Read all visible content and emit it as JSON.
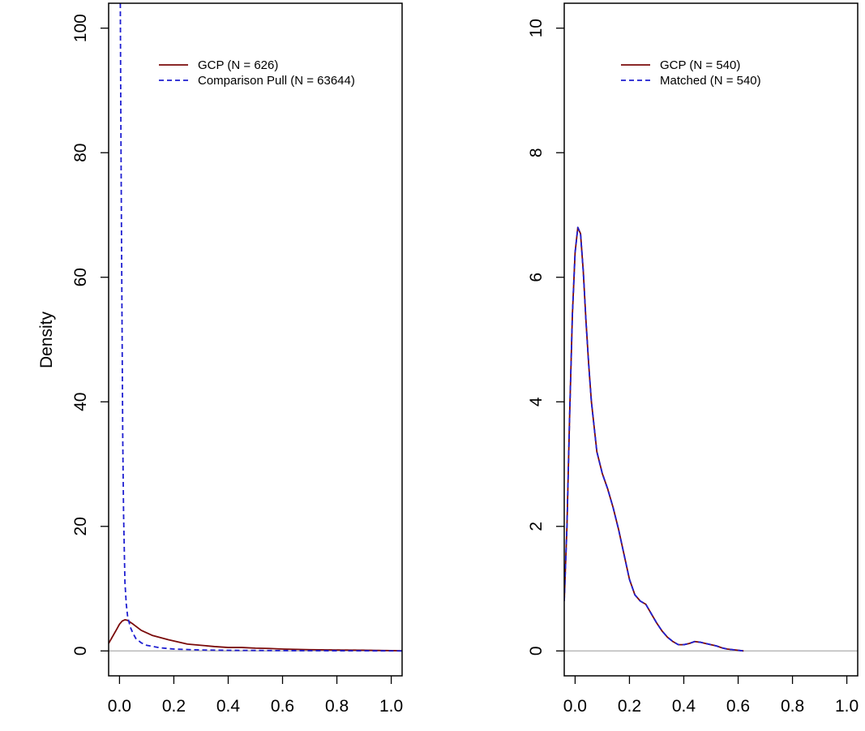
{
  "figure": {
    "ylabel": "Density",
    "colors": {
      "gcp": "#7a0a0a",
      "comparison": "#1f1fd1",
      "baseline": "#bdbdbd",
      "axis": "#000000"
    }
  },
  "chart_data": [
    {
      "type": "line",
      "xlabel": "",
      "ylabel": "Density",
      "xlim": [
        -0.04,
        1.04
      ],
      "ylim": [
        -4,
        104
      ],
      "xticks": [
        0.0,
        0.2,
        0.4,
        0.6,
        0.8,
        1.0
      ],
      "xtick_labels": [
        "0.0",
        "0.2",
        "0.4",
        "0.6",
        "0.8",
        "1.0"
      ],
      "yticks": [
        0,
        20,
        40,
        60,
        80,
        100
      ],
      "ytick_labels": [
        "0",
        "20",
        "40",
        "60",
        "80",
        "100"
      ],
      "grid": false,
      "legend": "top-right",
      "baseline_y": 0,
      "series": [
        {
          "name": "GCP (N = 626)",
          "style": "solid",
          "color": "#7a0a0a",
          "x": [
            -0.04,
            -0.01,
            0.0,
            0.01,
            0.02,
            0.03,
            0.05,
            0.08,
            0.12,
            0.18,
            0.25,
            0.3,
            0.35,
            0.4,
            0.45,
            0.5,
            0.55,
            0.6,
            0.65,
            0.7,
            0.8,
            0.9,
            1.0,
            1.04
          ],
          "y": [
            1.2,
            3.5,
            4.3,
            4.8,
            5.0,
            4.9,
            4.3,
            3.3,
            2.5,
            1.8,
            1.1,
            0.9,
            0.7,
            0.55,
            0.55,
            0.45,
            0.4,
            0.3,
            0.25,
            0.2,
            0.15,
            0.12,
            0.05,
            0.02
          ]
        },
        {
          "name": "Comparison Pull (N = 63644)",
          "style": "dashed",
          "color": "#1f1fd1",
          "x": [
            0.003,
            0.005,
            0.008,
            0.01,
            0.012,
            0.015,
            0.02,
            0.025,
            0.03,
            0.04,
            0.05,
            0.06,
            0.08,
            0.1,
            0.15,
            0.2,
            0.3,
            0.4,
            0.5,
            0.6,
            0.7,
            0.8,
            0.9,
            1.0,
            1.04
          ],
          "y": [
            104,
            85,
            62,
            48,
            34,
            22,
            11,
            7.5,
            5.5,
            3.8,
            2.8,
            2.0,
            1.3,
            0.9,
            0.5,
            0.3,
            0.15,
            0.1,
            0.08,
            0.05,
            0.04,
            0.03,
            0.02,
            0.01,
            0.0
          ]
        }
      ]
    },
    {
      "type": "line",
      "xlabel": "",
      "ylabel": "",
      "xlim": [
        -0.04,
        1.04
      ],
      "ylim": [
        -0.4,
        10.4
      ],
      "xticks": [
        0.0,
        0.2,
        0.4,
        0.6,
        0.8,
        1.0
      ],
      "xtick_labels": [
        "0.0",
        "0.2",
        "0.4",
        "0.6",
        "0.8",
        "1.0"
      ],
      "yticks": [
        0,
        2,
        4,
        6,
        8,
        10
      ],
      "ytick_labels": [
        "0",
        "2",
        "4",
        "6",
        "8",
        "10"
      ],
      "grid": false,
      "legend": "top-right",
      "baseline_y": 0,
      "series": [
        {
          "name": "GCP (N = 540)",
          "style": "solid",
          "color": "#7a0a0a",
          "x": [
            -0.04,
            -0.03,
            -0.02,
            -0.01,
            0.0,
            0.01,
            0.02,
            0.03,
            0.04,
            0.05,
            0.06,
            0.08,
            0.1,
            0.12,
            0.14,
            0.16,
            0.18,
            0.2,
            0.22,
            0.24,
            0.26,
            0.28,
            0.3,
            0.32,
            0.34,
            0.36,
            0.38,
            0.4,
            0.42,
            0.44,
            0.46,
            0.48,
            0.5,
            0.52,
            0.54,
            0.56,
            0.58,
            0.6,
            0.62
          ],
          "y": [
            0.8,
            2.0,
            3.8,
            5.4,
            6.4,
            6.8,
            6.7,
            6.1,
            5.3,
            4.6,
            4.0,
            3.2,
            2.85,
            2.6,
            2.3,
            1.95,
            1.55,
            1.15,
            0.9,
            0.8,
            0.75,
            0.6,
            0.45,
            0.32,
            0.22,
            0.15,
            0.1,
            0.1,
            0.12,
            0.15,
            0.14,
            0.12,
            0.1,
            0.08,
            0.05,
            0.03,
            0.02,
            0.01,
            0.0
          ]
        },
        {
          "name": "Matched (N = 540)",
          "style": "dashed",
          "color": "#1f1fd1",
          "x": [
            -0.04,
            -0.03,
            -0.02,
            -0.01,
            0.0,
            0.01,
            0.02,
            0.03,
            0.04,
            0.05,
            0.06,
            0.08,
            0.1,
            0.12,
            0.14,
            0.16,
            0.18,
            0.2,
            0.22,
            0.24,
            0.26,
            0.28,
            0.3,
            0.32,
            0.34,
            0.36,
            0.38,
            0.4,
            0.42,
            0.44,
            0.46,
            0.48,
            0.5,
            0.52,
            0.54,
            0.56,
            0.58,
            0.6,
            0.62
          ],
          "y": [
            0.8,
            2.0,
            3.8,
            5.4,
            6.4,
            6.8,
            6.7,
            6.1,
            5.3,
            4.6,
            4.0,
            3.2,
            2.85,
            2.6,
            2.3,
            1.95,
            1.55,
            1.15,
            0.9,
            0.8,
            0.75,
            0.6,
            0.45,
            0.32,
            0.22,
            0.15,
            0.1,
            0.1,
            0.12,
            0.15,
            0.14,
            0.12,
            0.1,
            0.08,
            0.05,
            0.03,
            0.02,
            0.01,
            0.0
          ]
        }
      ]
    }
  ]
}
